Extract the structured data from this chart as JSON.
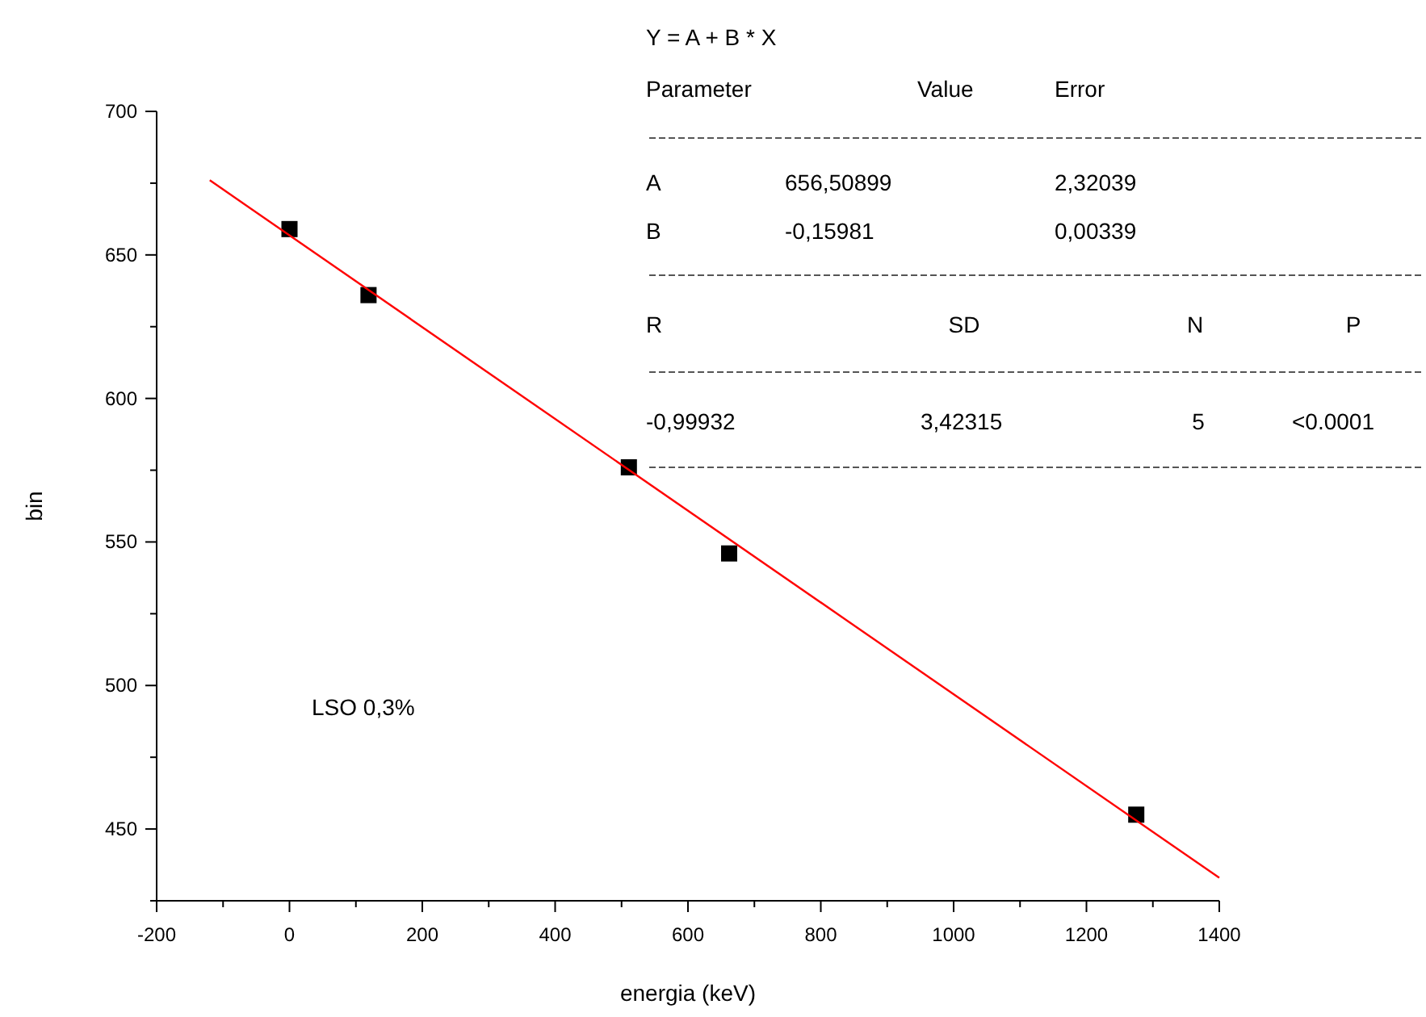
{
  "chart_data": {
    "type": "scatter",
    "xlabel": "energia (keV)",
    "ylabel": "bin",
    "xlim": [
      -200,
      1400
    ],
    "ylim": [
      425,
      700
    ],
    "xticks": [
      -200,
      {
        "value": -100,
        "label": null
      },
      0,
      {
        "value": 100,
        "label": null
      },
      200,
      {
        "value": 300,
        "label": null
      },
      400,
      {
        "value": 500,
        "label": null
      },
      600,
      {
        "value": 700,
        "label": null
      },
      800,
      {
        "value": 900,
        "label": null
      },
      1000,
      {
        "value": 1100,
        "label": null
      },
      1200,
      {
        "value": 1300,
        "label": null
      },
      1400
    ],
    "yticks": [
      {
        "value": 425,
        "label": null
      },
      450,
      {
        "value": 475,
        "label": null
      },
      500,
      {
        "value": 525,
        "label": null
      },
      550,
      {
        "value": 575,
        "label": null
      },
      600,
      {
        "value": 625,
        "label": null
      },
      650,
      {
        "value": 675,
        "label": null
      },
      700
    ],
    "grid": false,
    "legend": false,
    "series": [
      {
        "type": "scatter",
        "marker": "square",
        "color": "#000000",
        "x": [
          0,
          119,
          511,
          662,
          1275
        ],
        "values": [
          659,
          636,
          576,
          546,
          455
        ]
      },
      {
        "type": "line",
        "marker": "none",
        "line_style": "solid",
        "color": "#ff0000",
        "x": [
          -120,
          1400
        ],
        "values": [
          676,
          433
        ]
      }
    ],
    "annotations": [
      "Y = A + B * X",
      "Parameter",
      "Value",
      "Error",
      "A",
      "656,50899",
      "2,32039",
      "B",
      "-0,15981",
      "0,00339",
      "R",
      "SD",
      "N",
      "P",
      "-0,99932",
      "3,42315",
      "5",
      "<0.0001",
      "LSO 0,3%"
    ]
  }
}
